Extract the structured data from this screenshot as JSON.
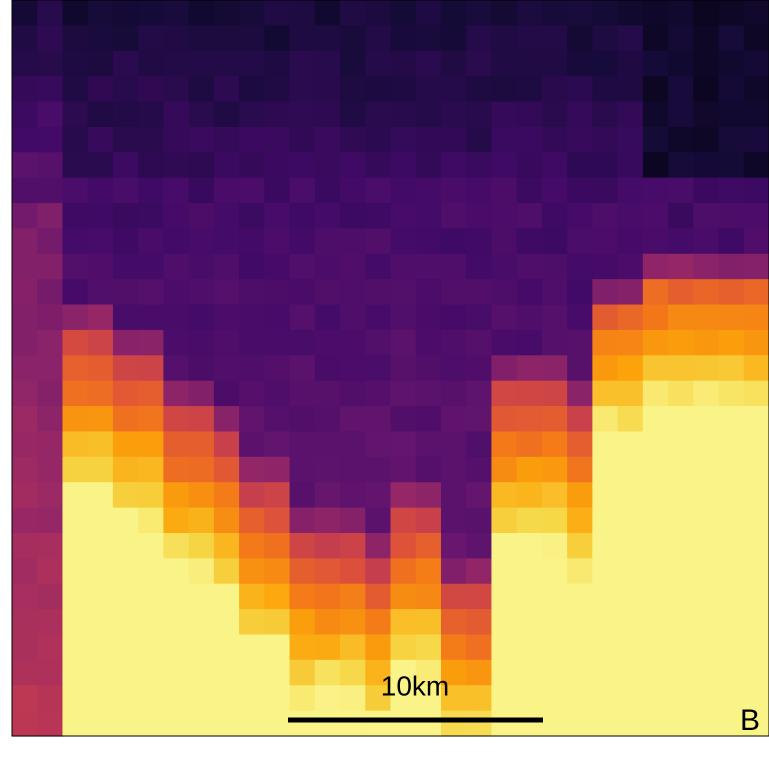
{
  "scale_bar": {
    "label": "10km"
  },
  "panel_label": "B"
}
